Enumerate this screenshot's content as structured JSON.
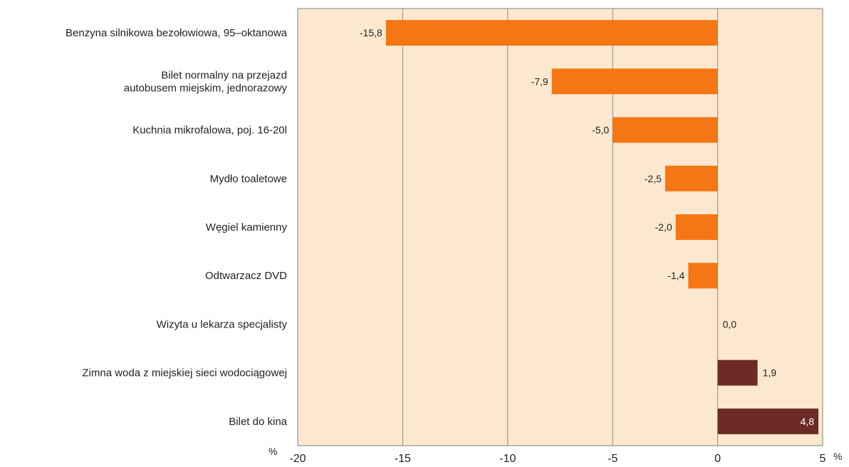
{
  "chart_data": {
    "type": "bar",
    "orientation": "horizontal",
    "categories": [
      [
        "Benzyna silnikowa bezołowiowa, 95–oktanowa"
      ],
      [
        "Bilet normalny na przejazd",
        "autobusem miejskim,  jednorazowy"
      ],
      [
        "Kuchnia mikrofalowa, poj. 16-20l"
      ],
      [
        "Mydło toaletowe"
      ],
      [
        "Węgiel kamienny"
      ],
      [
        "Odtwarzacz DVD"
      ],
      [
        "Wizyta u lekarza specjalisty"
      ],
      [
        "Zimna woda z miejskiej sieci wodociągowej"
      ],
      [
        "Bilet do kina"
      ]
    ],
    "values": [
      -15.8,
      -7.9,
      -5.0,
      -2.5,
      -2.0,
      -1.4,
      0.0,
      1.9,
      4.8
    ],
    "value_labels": [
      "-15,8",
      "-7,9",
      "-5,0",
      "-2,5",
      "-2,0",
      "-1,4",
      "0,0",
      "1,9",
      "4,8"
    ],
    "xlim": [
      -20,
      5
    ],
    "xticks": [
      -20,
      -15,
      -10,
      -5,
      0,
      5
    ],
    "xtick_labels": [
      "-20",
      "-15",
      "-10",
      "-5",
      "0",
      "5"
    ],
    "unit_left": "%",
    "unit_right": "%",
    "grid": true,
    "colors": {
      "negative": "#f57615",
      "positive": "#6b2b24",
      "plot_background": "#fbe8cf",
      "grid": "#8c8c8c",
      "frame": "#7f7f7f"
    }
  }
}
